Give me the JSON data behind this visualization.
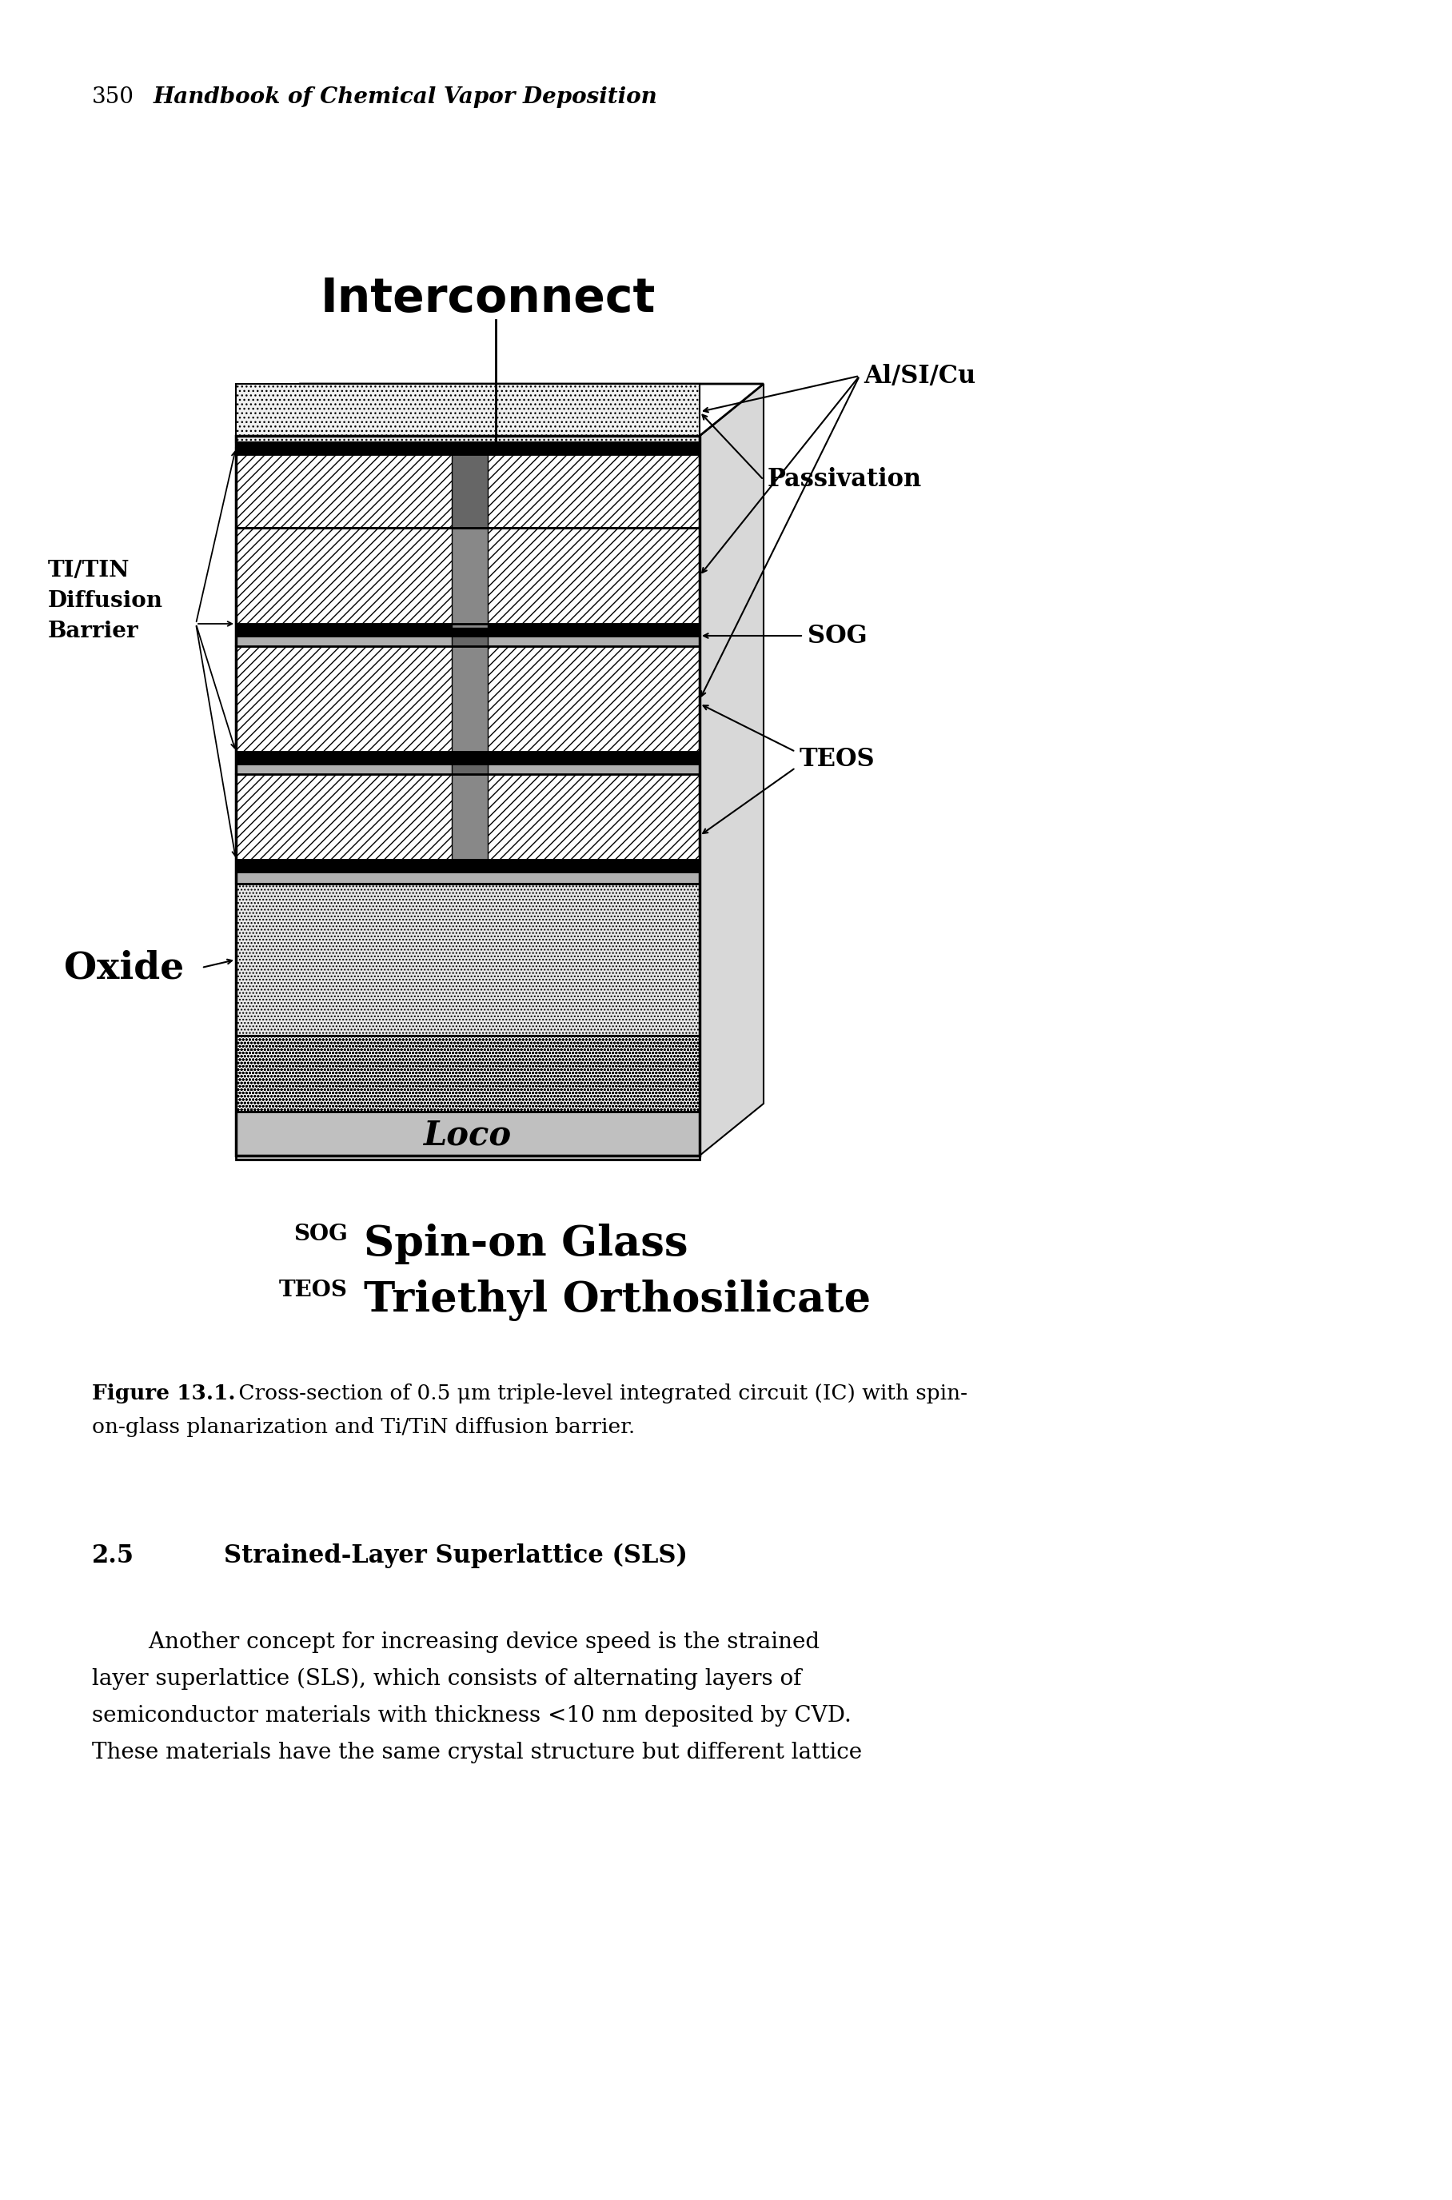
{
  "page_header_num": "350",
  "page_header_title": "Handbook of Chemical Vapor Deposition",
  "interconnect_label": "Interconnect",
  "al_si_cu_label": "Al/SI/Cu",
  "ti_tin_line1": "TI/TIN",
  "ti_tin_line2": "Diffusion",
  "ti_tin_line3": "Barrier",
  "passivation_label": "Passivation",
  "sog_label": "SOG",
  "teos_label": "TEOS",
  "oxide_label": "Oxide",
  "loco_label": "Loco",
  "legend_sog_abbr": "SOG",
  "legend_sog_text": "Spin-on Glass",
  "legend_teos_abbr": "TEOS",
  "legend_teos_text": "Triethyl Orthosilicate",
  "figure_label_bold": "Figure 13.1.",
  "figure_caption_rest": " Cross-section of 0.5 μm triple-level integrated circuit (IC) with spin-on-glass planarization and Ti/TiN diffusion barrier.",
  "section_num": "2.5",
  "section_title": "Strained-Layer Superlattice (SLS)",
  "body_line1": "        Another concept for increasing device speed is the strained",
  "body_line2": "layer superlattice (SLS), which consists of alternating layers of",
  "body_line3": "semiconductor materials with thickness <10 nm deposited by CVD.",
  "body_line4": "These materials have the same crystal structure but different lattice",
  "bg_color": "#ffffff"
}
